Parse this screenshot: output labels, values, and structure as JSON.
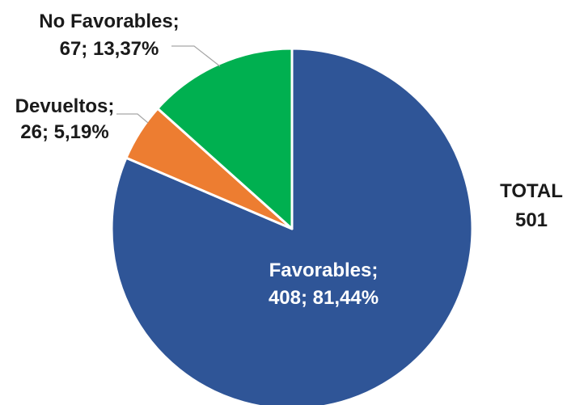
{
  "chart_data": {
    "type": "pie",
    "title": "",
    "slices": [
      {
        "name": "Favorables",
        "value": 408,
        "percent": "81,44%",
        "label_line1": "Favorables;",
        "label_line2": "408; 81,44%",
        "color": "#2f5597"
      },
      {
        "name": "Devueltos",
        "value": 26,
        "percent": "5,19%",
        "label_line1": "Devueltos;",
        "label_line2": "26; 5,19%",
        "color": "#ed7d31"
      },
      {
        "name": "No Favorables",
        "value": 67,
        "percent": "13,37%",
        "label_line1": "No Favorables;",
        "label_line2": "67; 13,37%",
        "color": "#00b050"
      }
    ],
    "total_label": "TOTAL",
    "total_value": "501",
    "legend": "none",
    "start_angle": "12 o'clock",
    "direction": "clockwise"
  }
}
